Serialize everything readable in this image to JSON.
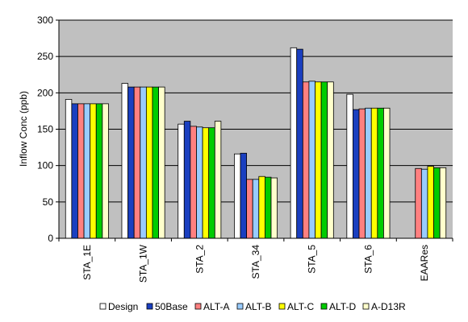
{
  "chart_data": {
    "type": "bar",
    "title": "",
    "xlabel": "",
    "ylabel": "Inflow Conc (ppb)",
    "ylim": [
      0,
      300
    ],
    "yticks": [
      0,
      50,
      100,
      150,
      200,
      250,
      300
    ],
    "grid": true,
    "legend_position": "bottom",
    "plot_background": "#c0c0c0",
    "categories": [
      "STA_1E",
      "STA_1W",
      "STA_2",
      "STA_34",
      "STA_5",
      "STA_6",
      "EAARes"
    ],
    "series": [
      {
        "name": "Design",
        "color": "#ffffff",
        "values": [
          191,
          213,
          157,
          116,
          262,
          198,
          null
        ]
      },
      {
        "name": "50Base",
        "color": "#1a3fc0",
        "values": [
          185,
          208,
          161,
          117,
          260,
          177,
          null
        ]
      },
      {
        "name": "ALT-A",
        "color": "#ff8080",
        "values": [
          185,
          208,
          154,
          81,
          215,
          178,
          96
        ]
      },
      {
        "name": "ALT-B",
        "color": "#99ccff",
        "values": [
          185,
          208,
          153,
          81,
          216,
          179,
          95
        ]
      },
      {
        "name": "ALT-C",
        "color": "#ffff00",
        "values": [
          185,
          208,
          152,
          85,
          215,
          179,
          99
        ]
      },
      {
        "name": "ALT-D",
        "color": "#00cc00",
        "values": [
          185,
          208,
          152,
          84,
          215,
          179,
          97
        ]
      },
      {
        "name": "A-D13R",
        "color": "#ffffcc",
        "values": [
          185,
          208,
          161,
          83,
          215,
          179,
          97
        ]
      }
    ]
  }
}
